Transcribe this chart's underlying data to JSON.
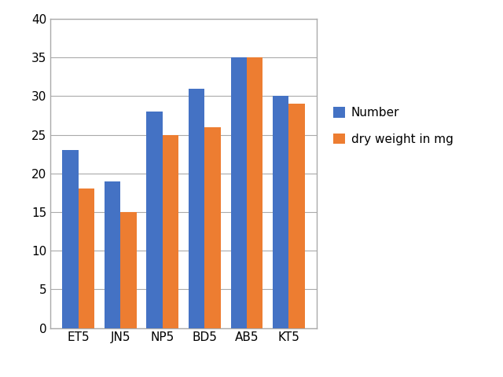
{
  "categories": [
    "ET5",
    "JN5",
    "NP5",
    "BD5",
    "AB5",
    "KT5"
  ],
  "number_values": [
    23,
    19,
    28,
    31,
    35,
    30
  ],
  "dry_weight_values": [
    18,
    15,
    25,
    26,
    35,
    29
  ],
  "bar_color_number": "#4472C4",
  "bar_color_dry_weight": "#ED7D31",
  "legend_labels": [
    "Number",
    "dry weight in mg"
  ],
  "ylim": [
    0,
    40
  ],
  "yticks": [
    0,
    5,
    10,
    15,
    20,
    25,
    30,
    35,
    40
  ],
  "bar_width": 0.38,
  "background_color": "#FFFFFF",
  "grid_color": "#AAAAAA",
  "legend_fontsize": 11,
  "tick_fontsize": 11,
  "figure_border_color": "#AAAAAA"
}
